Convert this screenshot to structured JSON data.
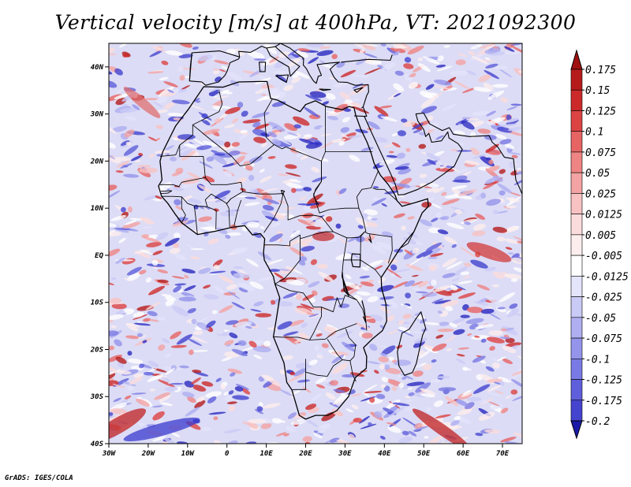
{
  "title": "Vertical velocity [m/s] at 400hPa, VT: 2021092300",
  "credit": "GrADS: IGES/COLA",
  "map": {
    "lon_range": [
      -30,
      75
    ],
    "lat_range": [
      -40,
      45
    ],
    "lon_ticks": [
      {
        "value": -30,
        "label": "30W"
      },
      {
        "value": -20,
        "label": "20W"
      },
      {
        "value": -10,
        "label": "10W"
      },
      {
        "value": 0,
        "label": "0"
      },
      {
        "value": 10,
        "label": "10E"
      },
      {
        "value": 20,
        "label": "20E"
      },
      {
        "value": 30,
        "label": "30E"
      },
      {
        "value": 40,
        "label": "40E"
      },
      {
        "value": 50,
        "label": "50E"
      },
      {
        "value": 60,
        "label": "60E"
      },
      {
        "value": 70,
        "label": "70E"
      }
    ],
    "lat_ticks": [
      {
        "value": 40,
        "label": "40N"
      },
      {
        "value": 30,
        "label": "30N"
      },
      {
        "value": 20,
        "label": "20N"
      },
      {
        "value": 10,
        "label": "10N"
      },
      {
        "value": 0,
        "label": "EQ"
      },
      {
        "value": -10,
        "label": "10S"
      },
      {
        "value": -20,
        "label": "20S"
      },
      {
        "value": -30,
        "label": "30S"
      },
      {
        "value": -40,
        "label": "40S"
      }
    ]
  },
  "colorbar": {
    "levels": [
      {
        "label": "0.175",
        "color": "#b51b1b"
      },
      {
        "label": "0.15",
        "color": "#cc2a2a"
      },
      {
        "label": "0.125",
        "color": "#dc4444"
      },
      {
        "label": "0.1",
        "color": "#e66464"
      },
      {
        "label": "0.075",
        "color": "#ee8484"
      },
      {
        "label": "0.05",
        "color": "#f3a3a3"
      },
      {
        "label": "0.025",
        "color": "#f8c2c2"
      },
      {
        "label": "0.0125",
        "color": "#fbdcdc"
      },
      {
        "label": "0.005",
        "color": "#fdeeee"
      },
      {
        "label": "-0.005",
        "color": "#ffffff"
      },
      {
        "label": "-0.0125",
        "color": "#e4e4fb"
      },
      {
        "label": "-0.025",
        "color": "#cacaf6"
      },
      {
        "label": "-0.05",
        "color": "#aeaef1"
      },
      {
        "label": "-0.075",
        "color": "#9494eb"
      },
      {
        "label": "-0.1",
        "color": "#7a7ae4"
      },
      {
        "label": "-0.125",
        "color": "#5f5fdb"
      },
      {
        "label": "-0.175",
        "color": "#4444cf"
      },
      {
        "label": "-0.2",
        "color": "#2b2bc0"
      }
    ],
    "top_color": "#a01010",
    "bottom_color": "#1a1aa8"
  }
}
